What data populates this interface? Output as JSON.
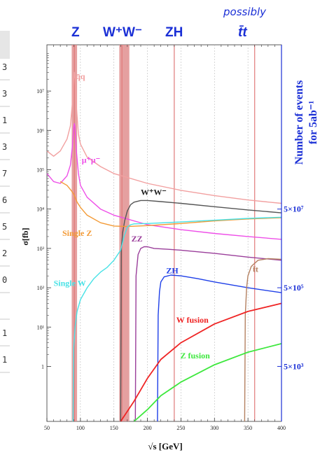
{
  "top_labels": [
    "Z",
    "W⁺W⁻",
    "ZH",
    "t̄t"
  ],
  "top_note": "possibly",
  "left_table_values": [
    "3",
    "3",
    "1",
    "3",
    "7",
    "6",
    "5",
    "2",
    "0",
    "",
    "1",
    "1"
  ],
  "chart_data": {
    "type": "line",
    "xlabel": "√s [GeV]",
    "ylabel": "σ[fb]",
    "ylabel_right": [
      "Number of events",
      "for 5ab⁻¹"
    ],
    "x_ticks": [
      "50",
      "100",
      "150",
      "200",
      "250",
      "300",
      "350",
      "400"
    ],
    "xlim": [
      50,
      400
    ],
    "y_scale": "log",
    "ylim": [
      0.04,
      150000000
    ],
    "y_ticks": [
      {
        "v": 1,
        "label": "1"
      },
      {
        "v": 10,
        "label": "10¹"
      },
      {
        "v": 100,
        "label": "10²"
      },
      {
        "v": 1000,
        "label": "10³"
      },
      {
        "v": 10000,
        "label": "10⁴"
      },
      {
        "v": 100000,
        "label": "10⁵"
      },
      {
        "v": 1000000,
        "label": "10⁶"
      },
      {
        "v": 10000000,
        "label": "10⁷"
      }
    ],
    "right_ticks": [
      {
        "v": 1,
        "label": "5×10³"
      },
      {
        "v": 100,
        "label": "5×10⁵"
      },
      {
        "v": 10000,
        "label": "5×10⁷"
      }
    ],
    "bands": [
      {
        "x0": 87,
        "x1": 95,
        "color": "#e08f8f"
      },
      {
        "x0": 158,
        "x1": 173,
        "color": "#e08f8f"
      }
    ],
    "vlines": [
      {
        "x": 91,
        "color": "#e07a7a"
      },
      {
        "x": 162,
        "color": "#e07a7a"
      },
      {
        "x": 240,
        "color": "#e07a7a"
      },
      {
        "x": 360,
        "color": "#e07a7a"
      }
    ],
    "series": [
      {
        "name": "q̄q",
        "color": "#f2a0a0",
        "label_at": [
          93,
          20000000
        ],
        "x": [
          50,
          60,
          70,
          80,
          85,
          88,
          90,
          91,
          92,
          94,
          97,
          100,
          110,
          130,
          150,
          200,
          250,
          300,
          350,
          400
        ],
        "y": [
          300000,
          220000,
          300000,
          600000,
          1300000,
          5000000,
          20000000,
          30000000,
          20000000,
          4000000,
          800000,
          450000,
          210000,
          120000,
          80000,
          45000,
          30000,
          22000,
          17000,
          14000
        ]
      },
      {
        "name": "μ⁺μ⁻",
        "color": "#ee4fe8",
        "label_at": [
          102,
          150000
        ],
        "x": [
          50,
          60,
          70,
          80,
          85,
          88,
          90,
          91,
          92,
          94,
          97,
          100,
          110,
          130,
          150,
          200,
          250,
          300,
          350,
          400
        ],
        "y": [
          80000,
          50000,
          45000,
          70000,
          130000,
          400000,
          1200000,
          1500000,
          1200000,
          300000,
          80000,
          40000,
          20000,
          10000,
          7000,
          4000,
          3000,
          2400,
          2000,
          1700
        ]
      },
      {
        "name": "W⁺W⁻",
        "color": "#555555",
        "label_at": [
          190,
          23000
        ],
        "x": [
          160,
          161,
          163,
          166,
          170,
          175,
          180,
          190,
          200,
          220,
          250,
          300,
          350,
          400
        ],
        "y": [
          0.04,
          1000,
          2500,
          5000,
          9000,
          13000,
          15000,
          16500,
          16500,
          15500,
          14000,
          11500,
          9500,
          8000
        ]
      },
      {
        "name": "Single Z",
        "color": "#f39a35",
        "label_at": [
          73,
          2100
        ],
        "x": [
          70,
          80,
          86,
          90,
          95,
          100,
          110,
          130,
          150,
          170,
          200,
          250,
          300,
          350,
          400
        ],
        "y": [
          50000,
          40000,
          30000,
          24000,
          15000,
          11000,
          7000,
          4500,
          3700,
          3600,
          3800,
          4300,
          5000,
          5600,
          6000
        ]
      },
      {
        "name": "ZZ",
        "color": "#9a3e9a",
        "label_at": [
          176,
          1500
        ],
        "x": [
          182,
          183,
          186,
          190,
          195,
          200,
          210,
          230,
          250,
          300,
          350,
          400
        ],
        "y": [
          0.04,
          200,
          700,
          1000,
          1100,
          1100,
          1000,
          950,
          900,
          750,
          600,
          500
        ]
      },
      {
        "name": "Single W",
        "color": "#49e2e6",
        "label_at": [
          60,
          110
        ],
        "x": [
          89,
          90,
          92,
          95,
          100,
          110,
          120,
          130,
          140,
          150,
          160,
          165,
          170,
          175,
          180,
          200,
          250,
          300,
          350,
          400
        ],
        "y": [
          0.04,
          3,
          10,
          25,
          50,
          100,
          170,
          250,
          330,
          500,
          900,
          2000,
          3500,
          4000,
          4200,
          4300,
          4700,
          5200,
          5800,
          6200
        ]
      },
      {
        "name": "ZH",
        "color": "#1e3fe8",
        "label_at": [
          228,
          230
        ],
        "x": [
          215,
          216,
          218,
          220,
          225,
          235,
          250,
          275,
          300,
          350,
          400
        ],
        "y": [
          0.04,
          20,
          80,
          140,
          190,
          210,
          200,
          170,
          140,
          100,
          75
        ]
      },
      {
        "name": "t̄t",
        "color": "#b48060",
        "label_at": [
          357,
          250
        ],
        "x": [
          345,
          346,
          348,
          350,
          355,
          365,
          380,
          400
        ],
        "y": [
          0.04,
          20,
          100,
          200,
          350,
          500,
          550,
          530
        ]
      },
      {
        "name": "W fusion",
        "color": "#ef2424",
        "label_at": [
          243,
          13
        ],
        "x": [
          160,
          180,
          200,
          220,
          250,
          300,
          350,
          400
        ],
        "y": [
          0.04,
          0.13,
          0.5,
          1.5,
          4,
          12,
          25,
          40
        ]
      },
      {
        "name": "Z fusion",
        "color": "#3ee83e",
        "label_at": [
          249,
          1.6
        ],
        "x": [
          180,
          200,
          220,
          250,
          300,
          350,
          400
        ],
        "y": [
          0.04,
          0.08,
          0.18,
          0.4,
          1.1,
          2.3,
          3.8
        ]
      }
    ]
  }
}
